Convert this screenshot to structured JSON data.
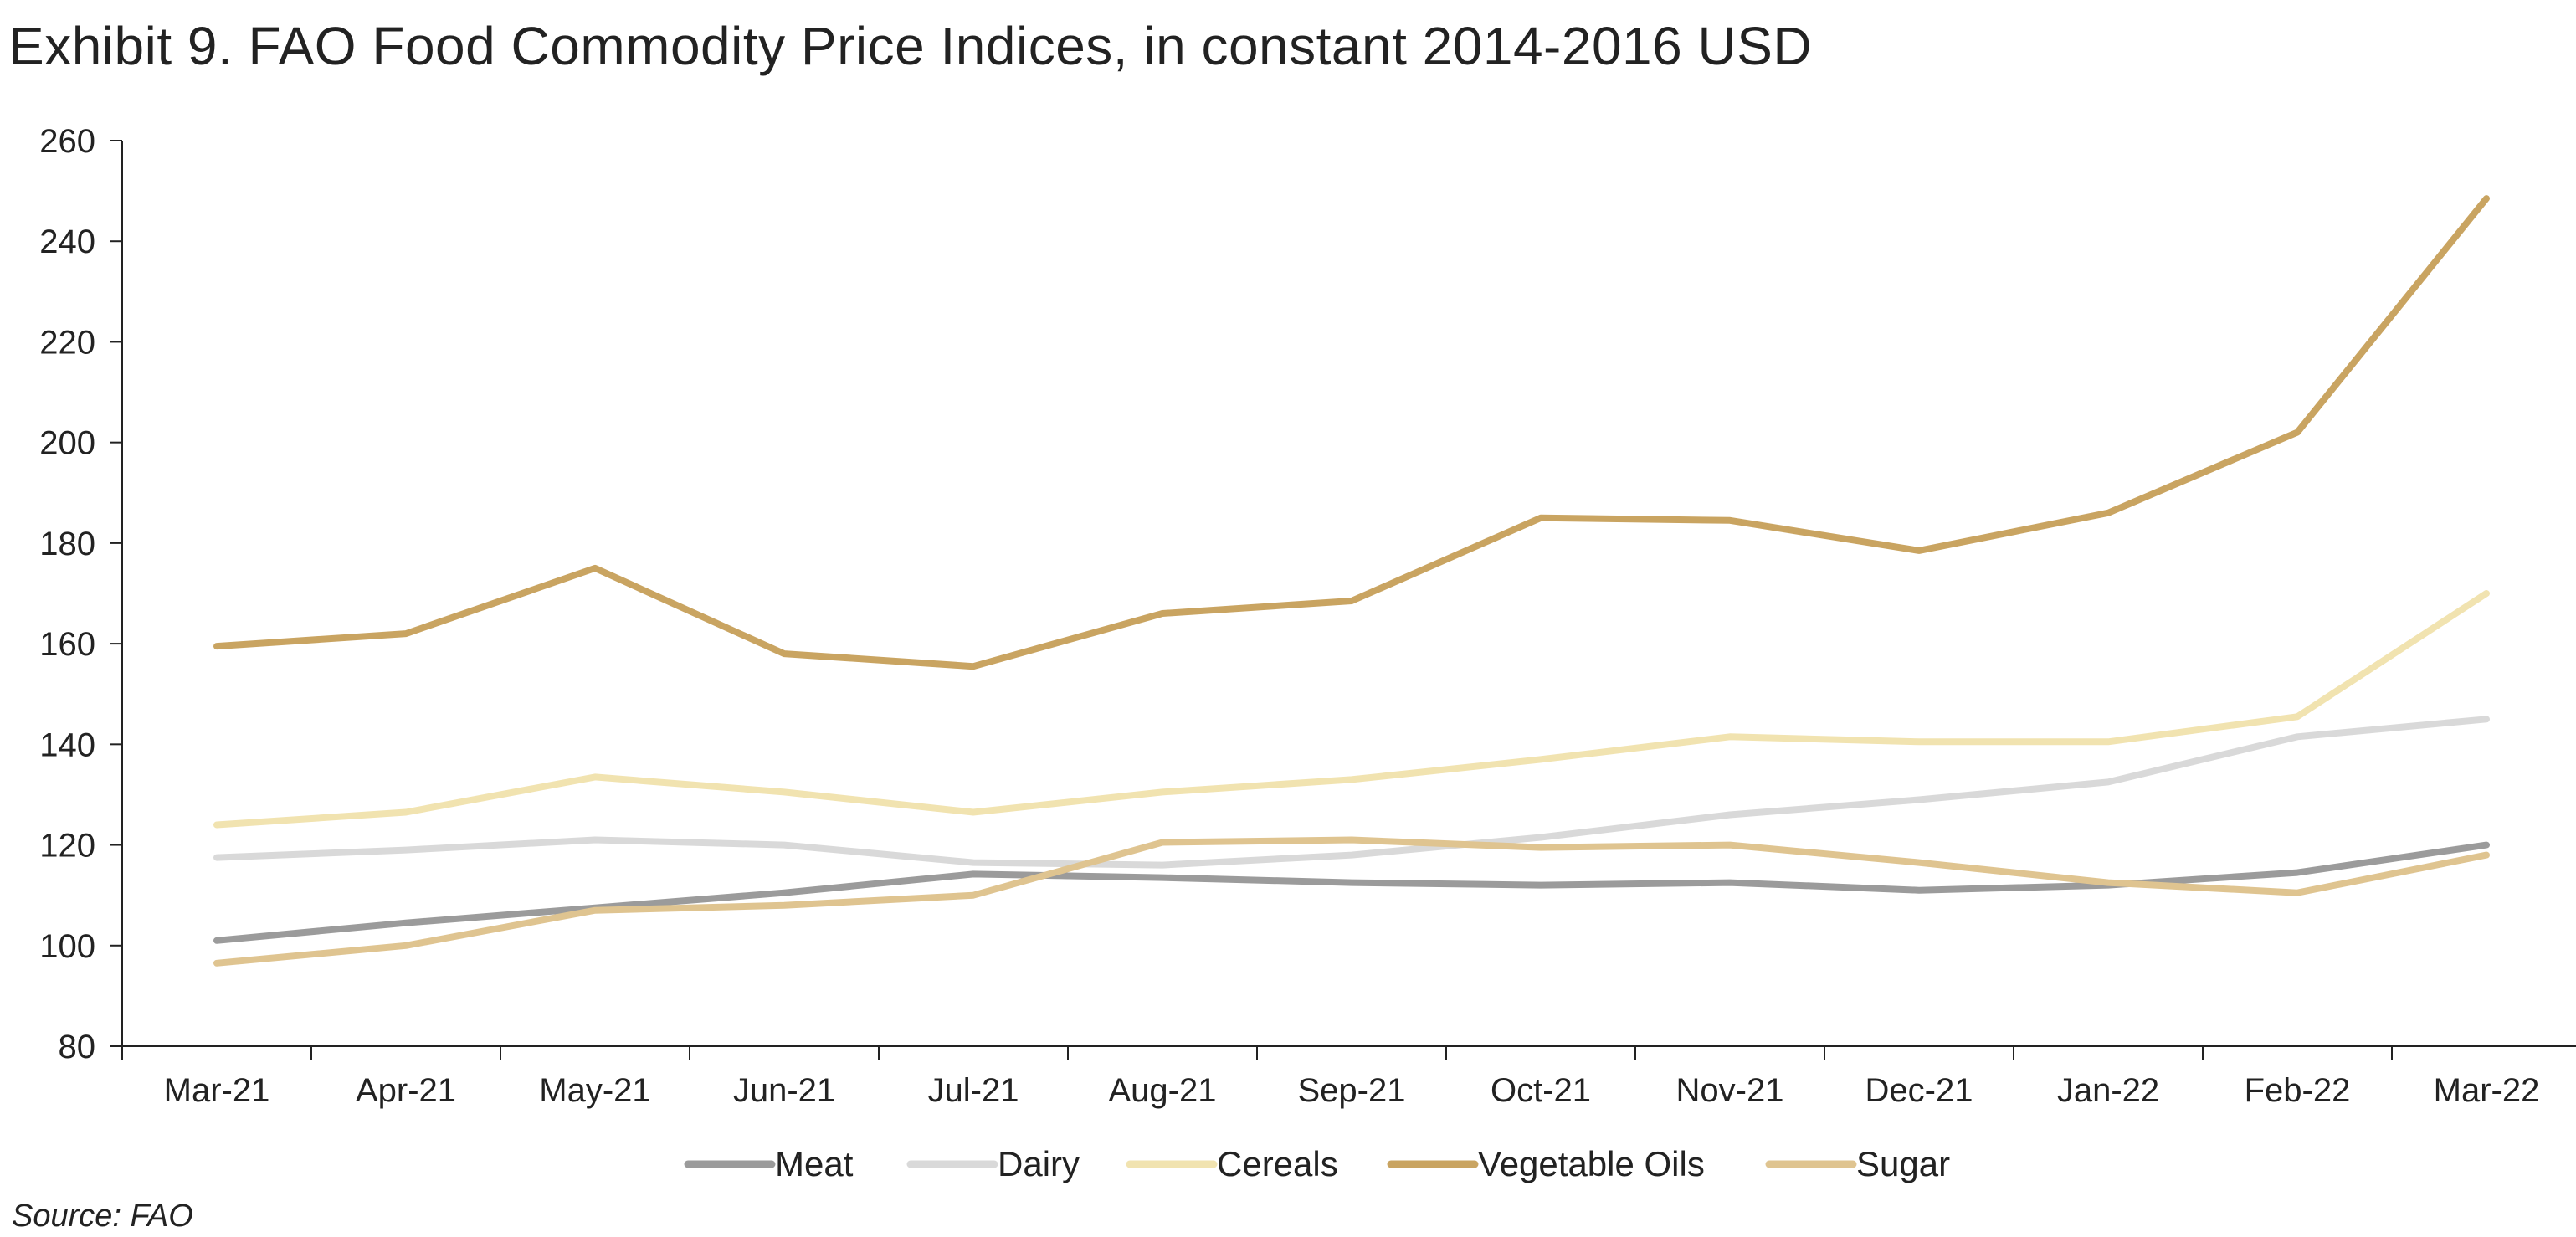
{
  "chart_data": {
    "type": "line",
    "title": "Exhibit 9. FAO Food Commodity Price Indices, in constant 2014-2016 USD",
    "xlabel": "",
    "ylabel": "",
    "categories": [
      "Mar-21",
      "Apr-21",
      "May-21",
      "Jun-21",
      "Jul-21",
      "Aug-21",
      "Sep-21",
      "Oct-21",
      "Nov-21",
      "Dec-21",
      "Jan-22",
      "Feb-22",
      "Mar-22"
    ],
    "ylim": [
      80,
      260
    ],
    "yticks": [
      80,
      100,
      120,
      140,
      160,
      180,
      200,
      220,
      240,
      260
    ],
    "grid": false,
    "legend_position": "bottom",
    "series": [
      {
        "name": "Meat",
        "color": "#9b9b9b",
        "values": [
          101,
          104.5,
          107.5,
          110.5,
          114.2,
          113.5,
          112.5,
          112,
          112.5,
          111,
          112,
          114.5,
          120
        ]
      },
      {
        "name": "Dairy",
        "color": "#d9d9d9",
        "values": [
          117.5,
          119,
          121,
          120,
          116.5,
          116,
          118,
          121.5,
          126,
          129,
          132.5,
          141.5,
          145
        ]
      },
      {
        "name": "Cereals",
        "color": "#f1e3b0",
        "values": [
          124,
          126.5,
          133.5,
          130.5,
          126.5,
          130.5,
          133,
          137,
          141.5,
          140.5,
          140.5,
          145.5,
          170
        ]
      },
      {
        "name": "Vegetable Oils",
        "color": "#c9a461",
        "values": [
          159.5,
          162,
          175,
          158,
          155.5,
          166,
          168.5,
          185,
          184.5,
          178.5,
          186,
          202,
          248.5
        ]
      },
      {
        "name": "Sugar",
        "color": "#dfc490",
        "values": [
          96.5,
          100,
          107,
          108,
          110,
          120.5,
          121,
          119.5,
          120,
          116.5,
          112.5,
          110.5,
          118
        ]
      }
    ]
  },
  "source": "Source: FAO"
}
